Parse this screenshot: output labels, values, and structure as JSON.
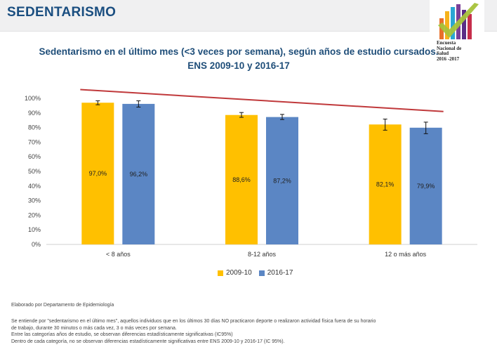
{
  "page": {
    "heading": "SEDENTARISMO"
  },
  "logo": {
    "lines": [
      "Encuesta",
      "Nacional de",
      "Salud",
      "2016 -2017"
    ],
    "bar_colors": [
      "#e8702a",
      "#f6b21b",
      "#2aa6d4",
      "#7a3f98",
      "#5b2d86",
      "#c62e4b"
    ],
    "check_color": "#a6c23a"
  },
  "chart_data": {
    "type": "bar",
    "title_line1": "Sedentarismo en el último mes (<3 veces por semana), según años de estudio cursados.",
    "title_line2": "ENS 2009-10 y 2016-17",
    "categories": [
      "< 8 años",
      "8-12 años",
      "12 o más años"
    ],
    "series": [
      {
        "name": "2009-10",
        "color": "#ffc000",
        "values": [
          97.0,
          88.6,
          82.1
        ],
        "labels": [
          "97,0%",
          "88,6%",
          "82,1%"
        ],
        "ci_low": [
          95.6,
          87.0,
          78.2
        ],
        "ci_high": [
          98.3,
          90.3,
          85.8
        ]
      },
      {
        "name": "2016-17",
        "color": "#5b86c4",
        "values": [
          96.2,
          87.2,
          79.9
        ],
        "labels": [
          "96,2%",
          "87,2%",
          "79,9%"
        ],
        "ci_low": [
          94.0,
          85.5,
          75.8
        ],
        "ci_high": [
          98.3,
          89.0,
          83.7
        ]
      }
    ],
    "ylim": [
      0,
      100
    ],
    "yticks": [
      0,
      10,
      20,
      30,
      40,
      50,
      60,
      70,
      80,
      90,
      100
    ],
    "ytick_labels": [
      "0%",
      "10%",
      "20%",
      "30%",
      "40%",
      "50%",
      "60%",
      "70%",
      "80%",
      "90%",
      "100%"
    ],
    "trend_line": {
      "color": "#c0393b",
      "from": 106,
      "to": 91
    },
    "grid": false,
    "legend_position": "bottom"
  },
  "footnotes": {
    "source": "Elaborado por Departamento de Epidemiología",
    "lines": [
      "Se entiende por \"sedentarismo en el último mes\", aquellos individuos que en los últimos 30 días NO practicaron deporte o realizaron actividad física fuera de su horario",
      "de trabajo, durante 30 minutos o más cada vez, 3 o más veces por semana.",
      "Entre las categorías años de estudio, se observan diferencias estadísticamente significativas (IC95%)",
      "Dentro de cada categoría, no se observan diferencias estadísticamente significativas entre ENS 2009-10 y 2016-17 (IC 95%)."
    ]
  }
}
